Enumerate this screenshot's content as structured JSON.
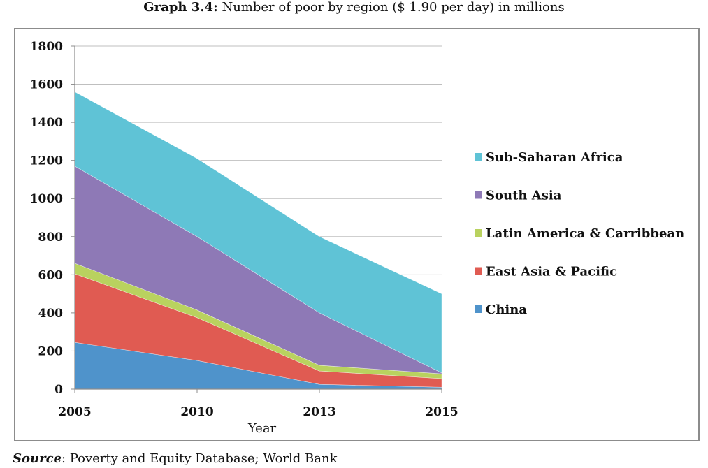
{
  "title": {
    "label": "Graph 3.4:",
    "text": " Number of poor by region ($ 1.90 per day) in millions"
  },
  "source": {
    "label": "Source",
    "text": ": Poverty and Equity Database; World Bank"
  },
  "chart_data": {
    "type": "area",
    "stacked": true,
    "categories": [
      "2005",
      "2010",
      "2013",
      "2015"
    ],
    "xlabel": "Year",
    "ylabel": "",
    "ylim": [
      0,
      1800
    ],
    "yticks": [
      0,
      200,
      400,
      600,
      800,
      1000,
      1200,
      1400,
      1600,
      1800
    ],
    "grid": true,
    "legend_position": "right",
    "series": [
      {
        "name": "China",
        "color": "#4f93cb",
        "values": [
          245,
          150,
          25,
          10
        ]
      },
      {
        "name": "East Asia & Pacific",
        "color": "#e05b52",
        "values": [
          360,
          225,
          70,
          45
        ]
      },
      {
        "name": "Latin America & Carribbean",
        "color": "#b9d25f",
        "values": [
          55,
          40,
          30,
          25
        ]
      },
      {
        "name": "South Asia",
        "color": "#8e79b6",
        "values": [
          510,
          385,
          275,
          5
        ]
      },
      {
        "name": "Sub-Saharan Africa",
        "color": "#5fc3d6",
        "values": [
          390,
          410,
          400,
          415
        ]
      }
    ]
  }
}
